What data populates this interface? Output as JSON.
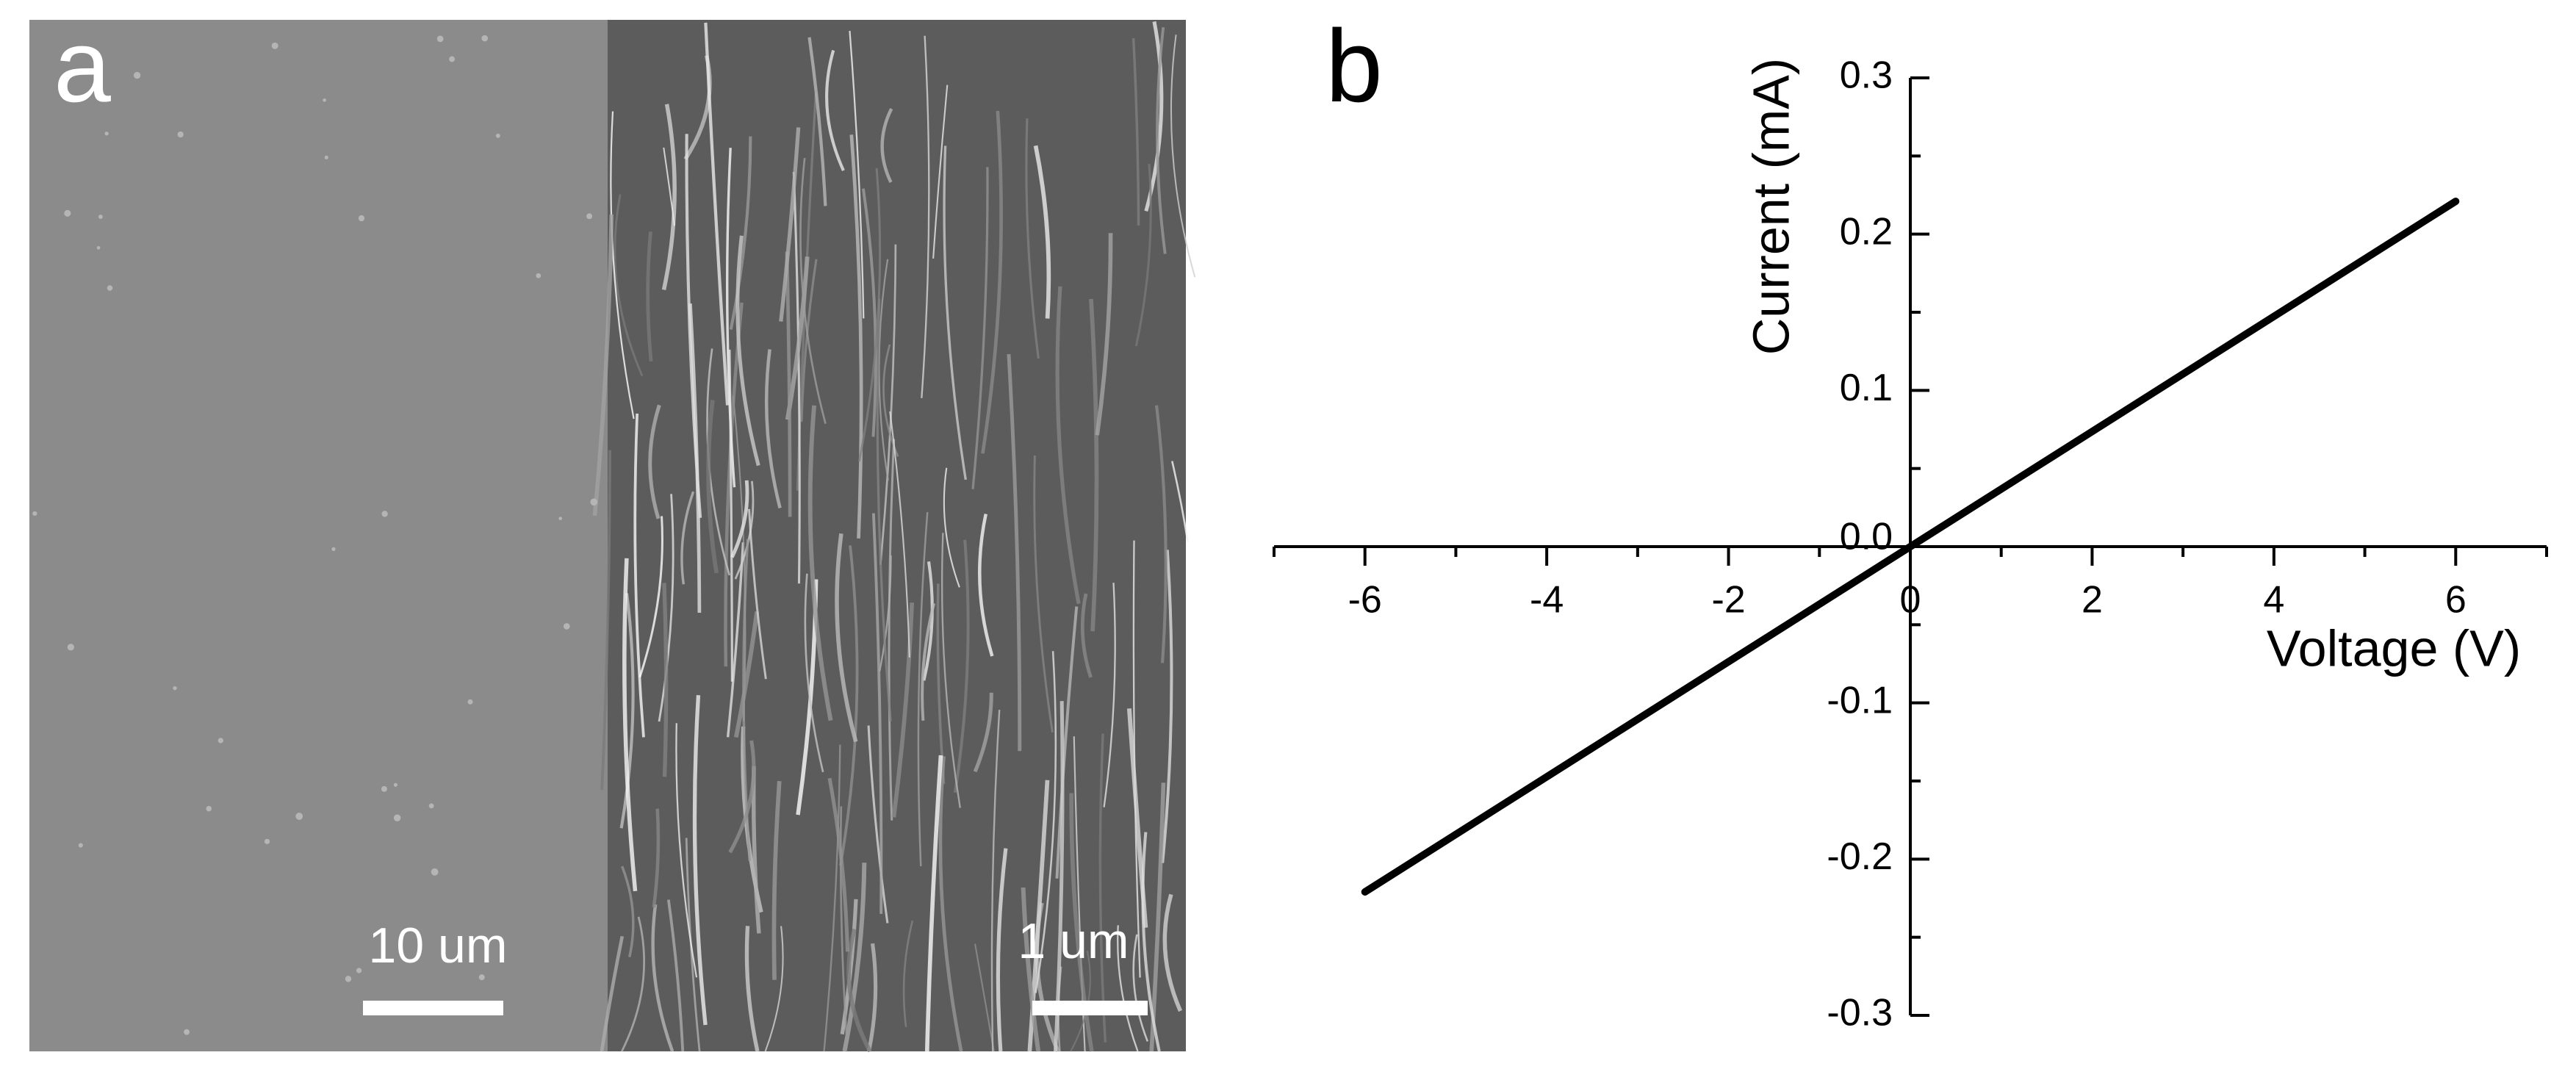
{
  "panel_a": {
    "label": "a",
    "scale_bar_left": "10 um",
    "scale_bar_right": "1 um"
  },
  "chart_data": {
    "type": "line",
    "panel_label": "b",
    "x_label": "Voltage (V)",
    "y_label": "Current (mA)",
    "x": [
      -6,
      0,
      6
    ],
    "series": [
      {
        "color": "#000000",
        "values": [
          -0.221,
          0,
          0.221
        ]
      }
    ],
    "xlim": [
      -7,
      7
    ],
    "xticks": [
      -6,
      -4,
      -2,
      0,
      2,
      4,
      6
    ],
    "xminorticks": [
      -7,
      -5,
      -3,
      -1,
      1,
      3,
      5,
      7
    ],
    "ylim": [
      -0.3,
      0.3
    ],
    "yticks": [
      -0.3,
      -0.2,
      -0.1,
      {
        "value": 0,
        "label": "0.0"
      },
      0.1,
      0.2,
      0.3
    ],
    "yminorticks": [
      -0.25,
      -0.15,
      -0.05,
      0.05,
      0.15,
      0.25
    ]
  }
}
